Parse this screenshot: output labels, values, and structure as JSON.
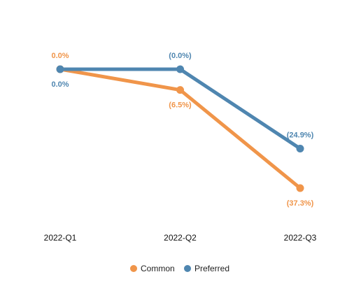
{
  "chart_data": {
    "type": "line",
    "categories": [
      "2022-Q1",
      "2022-Q2",
      "2022-Q3"
    ],
    "series": [
      {
        "name": "Common",
        "color": "#f0954a",
        "values": [
          0,
          -6.5,
          -37.3
        ],
        "value_labels": [
          "0.0%",
          "(6.5%)",
          "(37.3%)"
        ]
      },
      {
        "name": "Preferred",
        "color": "#4f86b0",
        "values": [
          0,
          0,
          -24.9
        ],
        "value_labels": [
          "0.0%",
          "(0.0%)",
          "(24.9%)"
        ]
      }
    ]
  }
}
